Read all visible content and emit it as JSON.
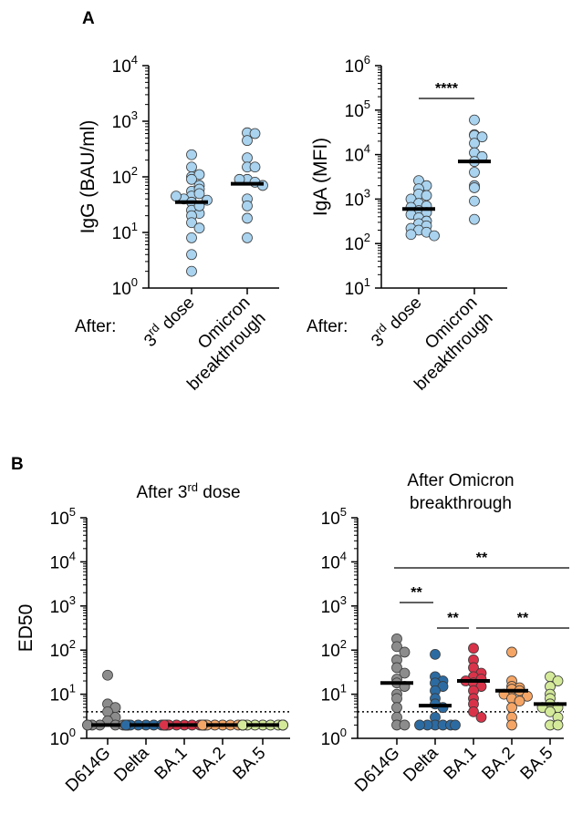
{
  "panels": {
    "a_label": "A",
    "b_label": "B"
  },
  "after_label": "After:",
  "chart_data": [
    {
      "type": "scatter",
      "panel": "A",
      "ylabel": "IgG (BAU/ml)",
      "ylim": [
        1,
        10000
      ],
      "yscale": "log",
      "yticks": [
        1,
        10,
        100,
        1000,
        10000
      ],
      "categories": [
        "3rd dose",
        "Omicron breakthrough"
      ],
      "point_color": "#a9d3ef",
      "medians": [
        35,
        75
      ],
      "points": [
        [
          250,
          150,
          100,
          110,
          90,
          70,
          55,
          45,
          60,
          50,
          40,
          35,
          38,
          45,
          25,
          22,
          20,
          30,
          15,
          12,
          8,
          4,
          2
        ],
        [
          620,
          450,
          600,
          220,
          150,
          150,
          90,
          80,
          90,
          70,
          40,
          30,
          18,
          8
        ]
      ],
      "grid": false
    },
    {
      "type": "scatter",
      "panel": "A",
      "ylabel": "IgA (MFI)",
      "ylim": [
        10,
        1000000
      ],
      "yscale": "log",
      "yticks": [
        10,
        100,
        1000,
        10000,
        100000,
        1000000
      ],
      "categories": [
        "3rd dose",
        "Omicron breakthrough"
      ],
      "point_color": "#a9d3ef",
      "medians": [
        600,
        7000
      ],
      "points": [
        [
          2600,
          2000,
          1700,
          1300,
          1200,
          1000,
          800,
          700,
          650,
          550,
          500,
          450,
          380,
          320,
          280,
          250,
          220,
          200,
          180,
          160,
          150
        ],
        [
          60000,
          28000,
          27000,
          25000,
          18000,
          11000,
          9000,
          7000,
          4000,
          2000,
          1800,
          900,
          350
        ]
      ],
      "significance": [
        {
          "from": 0,
          "to": 1,
          "label": "****"
        }
      ],
      "grid": false
    },
    {
      "type": "scatter",
      "panel": "B",
      "title": "After 3rd dose",
      "ylabel": "ED50",
      "ylim": [
        1,
        100000
      ],
      "yscale": "log",
      "yticks": [
        1,
        10,
        100,
        1000,
        10000,
        100000
      ],
      "categories": [
        "D614G",
        "Delta",
        "BA.1",
        "BA.2",
        "BA.5"
      ],
      "colors": [
        "#8c8c8c",
        "#2c6ba2",
        "#d9334a",
        "#f5a565",
        "#d4ea9a"
      ],
      "detection_limit": 4,
      "medians": [
        2,
        2,
        2,
        2,
        2
      ],
      "points": [
        [
          27,
          6,
          5,
          4,
          3,
          2.5,
          2,
          2,
          2,
          2,
          2,
          2,
          2,
          2,
          2
        ],
        [
          2,
          2,
          2,
          2,
          2,
          2,
          2,
          2,
          2,
          2,
          2,
          2,
          2,
          2,
          2
        ],
        [
          2,
          2,
          2,
          2,
          2,
          2,
          2,
          2,
          2,
          2,
          2,
          2,
          2,
          2,
          2
        ],
        [
          2,
          2,
          2,
          2,
          2,
          2,
          2,
          2,
          2,
          2,
          2,
          2,
          2,
          2,
          2
        ],
        [
          2,
          2,
          2,
          2,
          2,
          2,
          2,
          2,
          2,
          2,
          2,
          2,
          2,
          2,
          2
        ]
      ],
      "grid": false
    },
    {
      "type": "scatter",
      "panel": "B",
      "title": "After Omicron breakthrough",
      "ylabel": "",
      "ylim": [
        1,
        100000
      ],
      "yscale": "log",
      "yticks": [
        1,
        10,
        100,
        1000,
        10000,
        100000
      ],
      "categories": [
        "D614G",
        "Delta",
        "BA.1",
        "BA.2",
        "BA.5"
      ],
      "colors": [
        "#8c8c8c",
        "#2c6ba2",
        "#d9334a",
        "#f5a565",
        "#d4ea9a"
      ],
      "detection_limit": 4,
      "medians": [
        18,
        5.5,
        20,
        12,
        6
      ],
      "points": [
        [
          180,
          120,
          90,
          60,
          40,
          30,
          22,
          18,
          15,
          10,
          8,
          5,
          3,
          2,
          2
        ],
        [
          80,
          25,
          20,
          18,
          15,
          12,
          8,
          6,
          5,
          3,
          2,
          2,
          2,
          2,
          2,
          2
        ],
        [
          110,
          60,
          40,
          30,
          25,
          22,
          20,
          18,
          15,
          12,
          8,
          6,
          4,
          3
        ],
        [
          90,
          20,
          15,
          14,
          13,
          12,
          10,
          9,
          8,
          7,
          5,
          3,
          2
        ],
        [
          25,
          20,
          15,
          10,
          8,
          6,
          5,
          5,
          4,
          3,
          2,
          2
        ]
      ],
      "significance": [
        {
          "from": 0,
          "to": 4,
          "label": "**"
        },
        {
          "from": 0,
          "to": 1,
          "label": "**"
        },
        {
          "from": 1,
          "to": 2,
          "label": "**"
        },
        {
          "from": 2,
          "to": 4,
          "label": "**"
        }
      ],
      "grid": false
    }
  ]
}
